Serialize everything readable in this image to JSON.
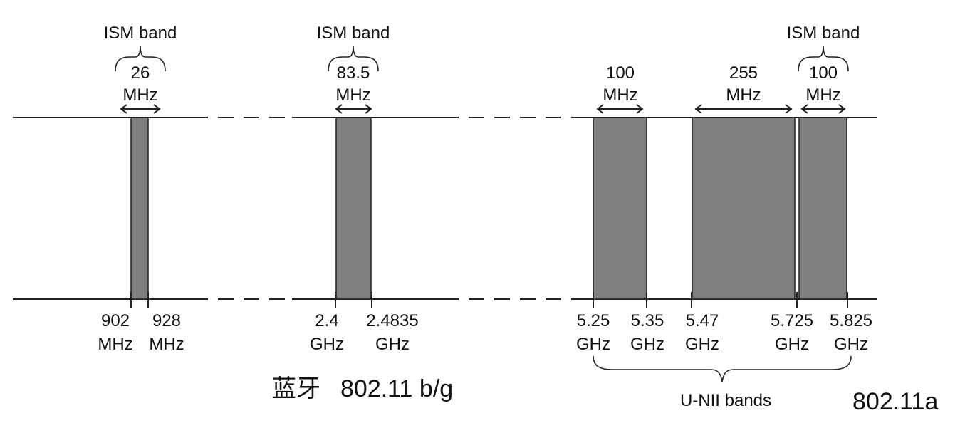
{
  "ism_label": "ISM band",
  "band_widths": [
    {
      "value": "26",
      "unit": "MHz"
    },
    {
      "value": "83.5",
      "unit": "MHz"
    },
    {
      "value": "100",
      "unit": "MHz"
    },
    {
      "value": "255",
      "unit": "MHz"
    },
    {
      "value": "100",
      "unit": "MHz"
    }
  ],
  "frequencies": [
    {
      "value": "902",
      "unit": "MHz"
    },
    {
      "value": "928",
      "unit": "MHz"
    },
    {
      "value": "2.4",
      "unit": "GHz"
    },
    {
      "value": "2.4835",
      "unit": "GHz"
    },
    {
      "value": "5.25",
      "unit": "GHz"
    },
    {
      "value": "5.35",
      "unit": "GHz"
    },
    {
      "value": "5.47",
      "unit": "GHz"
    },
    {
      "value": "5.725",
      "unit": "GHz"
    },
    {
      "value": "5.825",
      "unit": "GHz"
    }
  ],
  "unii_label": "U-NII bands",
  "bluetooth_label": "蓝牙",
  "bg_label": "802.11 b/g",
  "a_label": "802.11a",
  "colors": {
    "band_fill": "#7f7f7f",
    "line": "#222222"
  }
}
